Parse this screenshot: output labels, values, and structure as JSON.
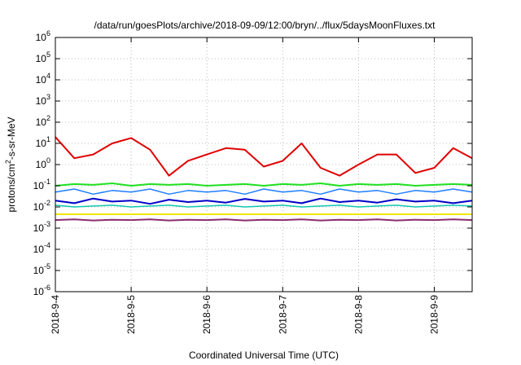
{
  "chart_data": {
    "type": "line",
    "title": "/data/run/goesPlots/archive/2018-09-09/12:00/bryn/../flux/5daysMoonFluxes.txt",
    "xlabel": "Coordinated Universal Time (UTC)",
    "ylabel": {
      "base": "protons/cm",
      "sup": "2",
      "rest": "-s-sr-MeV"
    },
    "xscale": "date",
    "x_range": [
      "2018-09-04 00:00",
      "2018-09-09 12:00"
    ],
    "x_ticks": [
      "2018-9-4",
      "2018-9-5",
      "2018-9-6",
      "2018-9-7",
      "2018-9-8",
      "2018-9-9"
    ],
    "yscale": "log",
    "ylim": [
      1e-06,
      1000000.0
    ],
    "y_ticks": [
      {
        "base": "10",
        "exp": "-6"
      },
      {
        "base": "10",
        "exp": "-5"
      },
      {
        "base": "10",
        "exp": "-4"
      },
      {
        "base": "10",
        "exp": "-3"
      },
      {
        "base": "10",
        "exp": "-2"
      },
      {
        "base": "10",
        "exp": "-1"
      },
      {
        "base": "10",
        "exp": "0"
      },
      {
        "base": "10",
        "exp": "1"
      },
      {
        "base": "10",
        "exp": "2"
      },
      {
        "base": "10",
        "exp": "3"
      },
      {
        "base": "10",
        "exp": "4"
      },
      {
        "base": "10",
        "exp": "5"
      },
      {
        "base": "10",
        "exp": "6"
      }
    ],
    "grid": true,
    "legend": "none",
    "x": [
      "2018-09-04 00:00",
      "2018-09-04 06:00",
      "2018-09-04 12:00",
      "2018-09-04 18:00",
      "2018-09-05 00:00",
      "2018-09-05 06:00",
      "2018-09-05 12:00",
      "2018-09-05 18:00",
      "2018-09-06 00:00",
      "2018-09-06 06:00",
      "2018-09-06 12:00",
      "2018-09-06 18:00",
      "2018-09-07 00:00",
      "2018-09-07 06:00",
      "2018-09-07 12:00",
      "2018-09-07 18:00",
      "2018-09-08 00:00",
      "2018-09-08 06:00",
      "2018-09-08 12:00",
      "2018-09-08 18:00",
      "2018-09-09 00:00",
      "2018-09-09 06:00",
      "2018-09-09 12:00"
    ],
    "series": [
      {
        "color": "#e00000",
        "width": 2,
        "values": [
          20,
          2,
          3,
          10,
          18,
          5,
          0.3,
          1.5,
          3,
          6,
          5,
          0.8,
          1.5,
          10,
          0.7,
          0.3,
          1,
          3,
          3,
          0.4,
          0.7,
          6,
          2
        ]
      },
      {
        "color": "#20e020",
        "width": 2,
        "values": [
          0.1,
          0.12,
          0.11,
          0.13,
          0.1,
          0.12,
          0.11,
          0.12,
          0.1,
          0.11,
          0.12,
          0.1,
          0.12,
          0.11,
          0.13,
          0.1,
          0.12,
          0.11,
          0.12,
          0.1,
          0.11,
          0.12,
          0.11
        ]
      },
      {
        "color": "#1e7fff",
        "width": 1.5,
        "values": [
          0.05,
          0.07,
          0.04,
          0.06,
          0.05,
          0.07,
          0.04,
          0.06,
          0.05,
          0.06,
          0.04,
          0.07,
          0.05,
          0.06,
          0.04,
          0.07,
          0.05,
          0.06,
          0.04,
          0.06,
          0.05,
          0.07,
          0.05
        ]
      },
      {
        "color": "#0000c8",
        "width": 2,
        "values": [
          0.02,
          0.015,
          0.025,
          0.018,
          0.02,
          0.014,
          0.022,
          0.017,
          0.02,
          0.016,
          0.024,
          0.018,
          0.02,
          0.015,
          0.025,
          0.017,
          0.02,
          0.016,
          0.023,
          0.018,
          0.02,
          0.015,
          0.02
        ]
      },
      {
        "color": "#10c8b0",
        "width": 1.5,
        "values": [
          0.012,
          0.01,
          0.011,
          0.012,
          0.01,
          0.011,
          0.012,
          0.01,
          0.011,
          0.012,
          0.01,
          0.011,
          0.012,
          0.01,
          0.011,
          0.012,
          0.01,
          0.011,
          0.012,
          0.01,
          0.011,
          0.012,
          0.011
        ]
      },
      {
        "color": "#f0e800",
        "width": 2,
        "values": [
          0.0045,
          0.0045,
          0.0045,
          0.0045,
          0.0045,
          0.0045,
          0.0045,
          0.0045,
          0.0045,
          0.0045,
          0.0045,
          0.0045,
          0.0045,
          0.0045,
          0.0045,
          0.0045,
          0.0045,
          0.0045,
          0.0045,
          0.0045,
          0.0045,
          0.0045,
          0.0045
        ]
      },
      {
        "color": "#8b2c6e",
        "width": 2,
        "values": [
          0.0024,
          0.0026,
          0.0023,
          0.0025,
          0.0024,
          0.0026,
          0.0023,
          0.0025,
          0.0024,
          0.0026,
          0.0023,
          0.0025,
          0.0024,
          0.0026,
          0.0023,
          0.0025,
          0.0024,
          0.0026,
          0.0023,
          0.0025,
          0.0024,
          0.0026,
          0.0024
        ]
      }
    ]
  }
}
